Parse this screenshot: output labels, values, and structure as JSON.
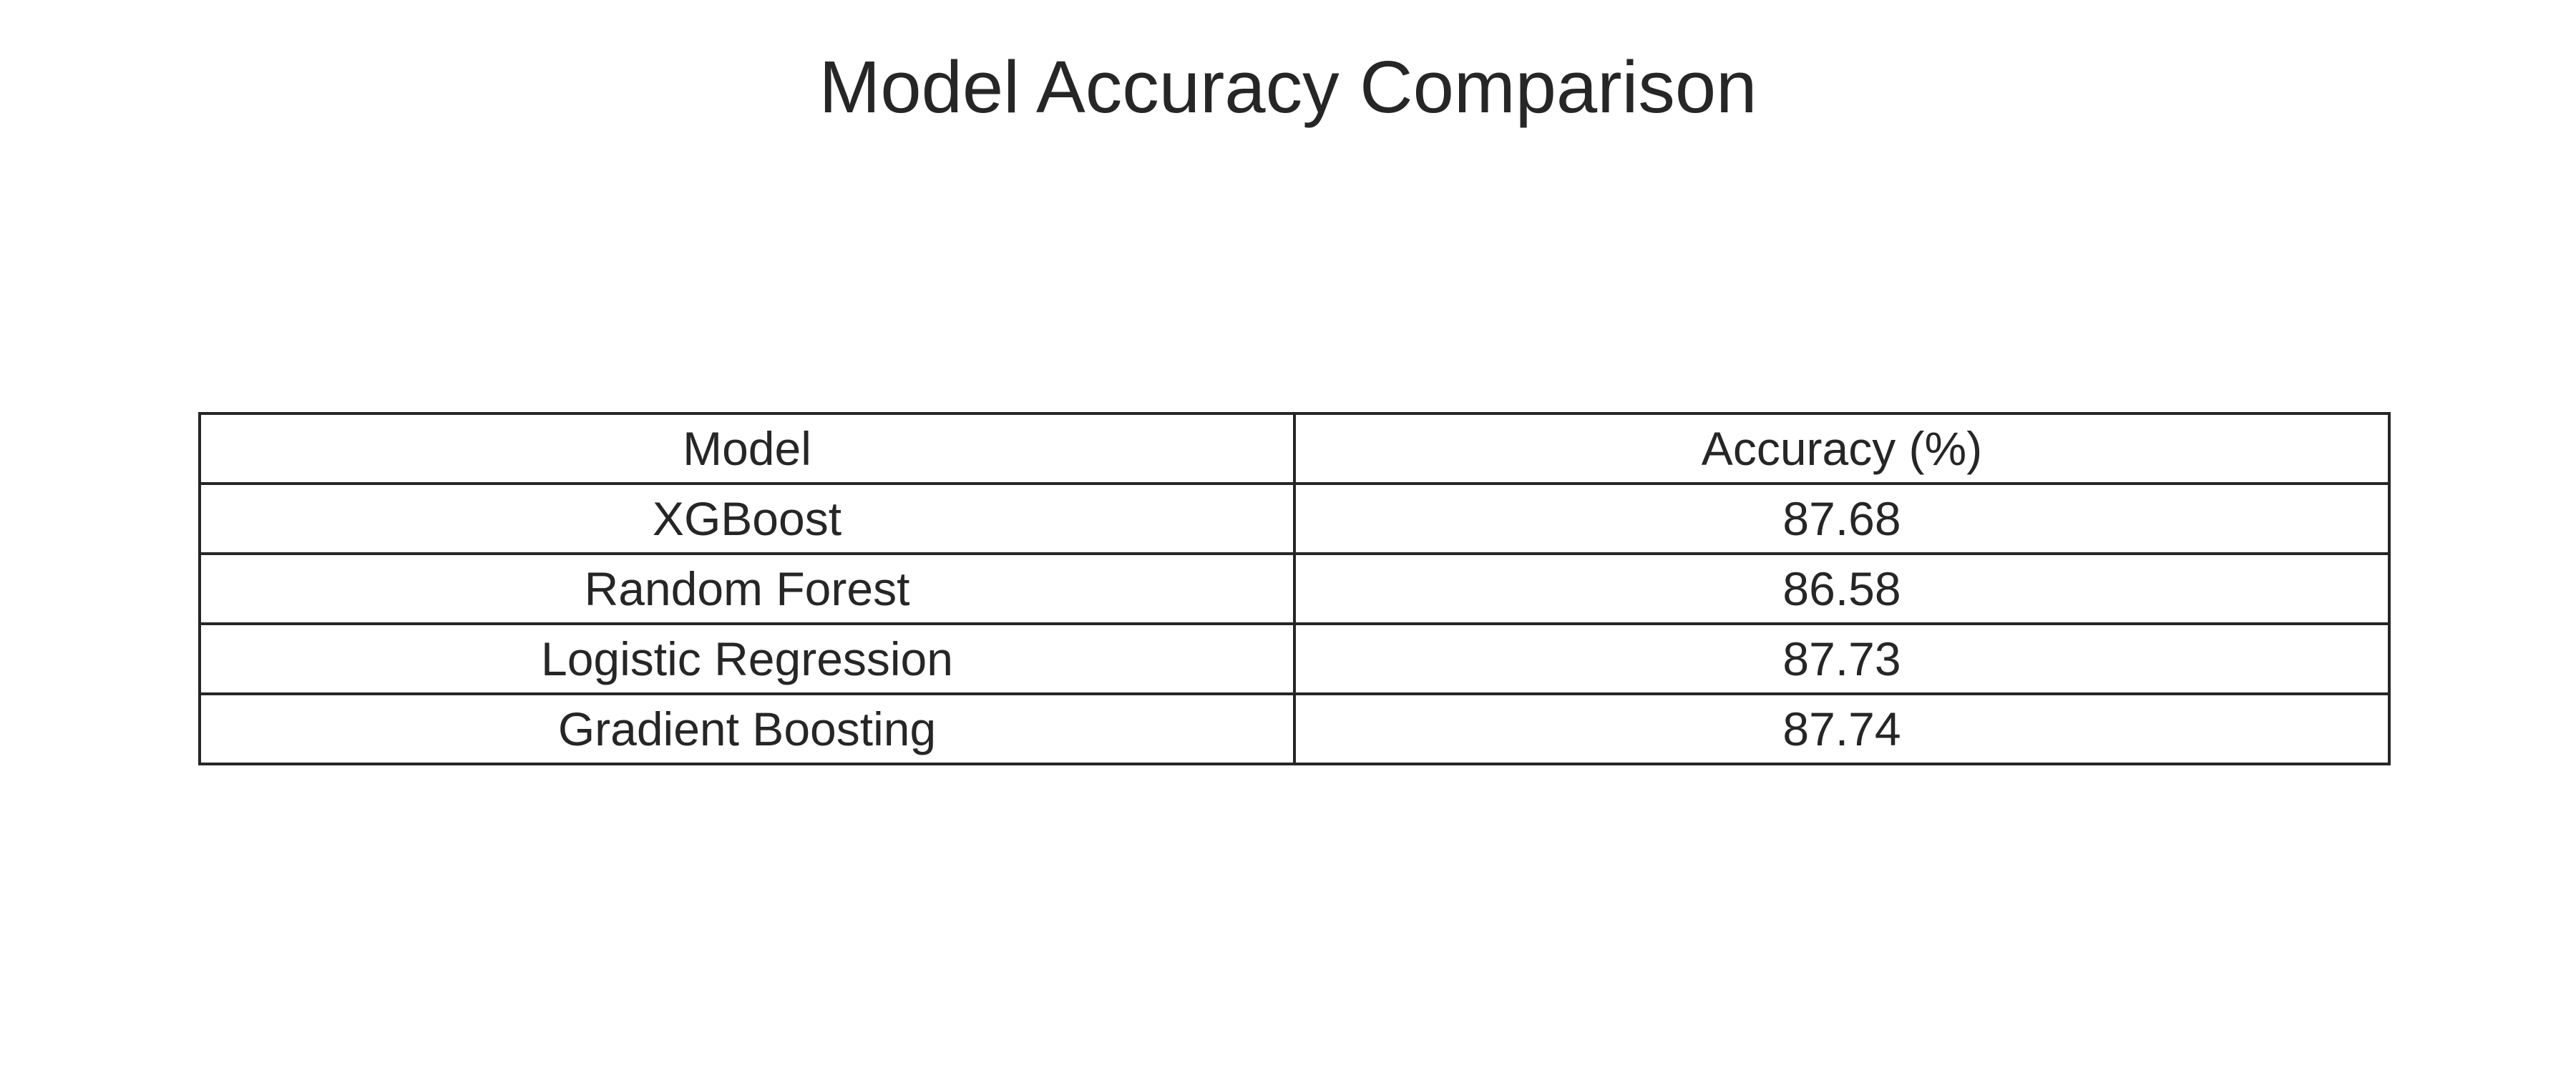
{
  "chart_data": {
    "type": "table",
    "title": "Model Accuracy Comparison",
    "columns": [
      "Model",
      "Accuracy (%)"
    ],
    "rows": [
      [
        "XGBoost",
        "87.68"
      ],
      [
        "Random Forest",
        "86.58"
      ],
      [
        "Logistic Regression",
        "87.73"
      ],
      [
        "Gradient Boosting",
        "87.74"
      ]
    ]
  }
}
